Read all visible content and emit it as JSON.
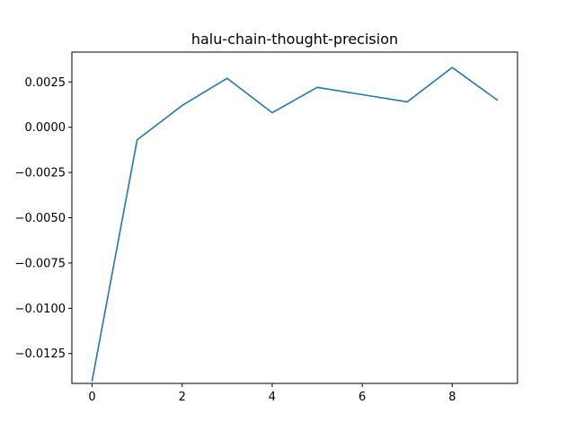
{
  "chart_data": {
    "type": "line",
    "title": "halu-chain-thought-precision",
    "xlabel": "",
    "ylabel": "",
    "xlim": [
      -0.45,
      9.45
    ],
    "ylim": [
      -0.01415,
      0.00415
    ],
    "x_ticks": [
      0,
      2,
      4,
      6,
      8
    ],
    "x_tick_labels": [
      "0",
      "2",
      "4",
      "6",
      "8"
    ],
    "y_ticks": [
      0.0025,
      0.0,
      -0.0025,
      -0.005,
      -0.0075,
      -0.01,
      -0.0125
    ],
    "y_tick_labels": [
      "0.0025",
      "0.0000",
      "−0.0025",
      "−0.0050",
      "−0.0075",
      "−0.0100",
      "−0.0125"
    ],
    "grid": false,
    "series": [
      {
        "name": "halu-chain-thought-precision",
        "color": "#1f77b4",
        "x": [
          0,
          1,
          2,
          3,
          4,
          5,
          6,
          7,
          8,
          9
        ],
        "values": [
          -0.014,
          -0.0007,
          0.0012,
          0.0027,
          0.0008,
          0.0022,
          0.0018,
          0.0014,
          0.0033,
          0.0015
        ]
      }
    ]
  }
}
